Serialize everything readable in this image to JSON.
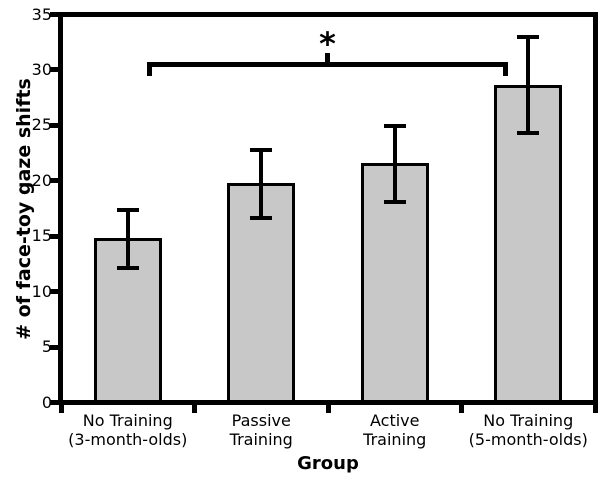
{
  "chart_data": {
    "type": "bar",
    "title": "",
    "xlabel": "Group",
    "ylabel": "# of face-toy gaze shifts",
    "categories": [
      "No Training\n(3-month-olds)",
      "Passive\nTraining",
      "Active\nTraining",
      "No Training\n(5-month-olds)"
    ],
    "values": [
      14.8,
      19.8,
      21.6,
      28.6
    ],
    "error_upper": [
      17.4,
      22.8,
      24.9,
      33.0
    ],
    "error_lower": [
      12.1,
      16.6,
      18.1,
      24.3
    ],
    "ylim": [
      0,
      35
    ],
    "yticks": [
      0,
      5,
      10,
      15,
      20,
      25,
      30,
      35
    ],
    "grid": false,
    "legend": null,
    "bar_fill": "#c8c8c8",
    "line_color": "#000000",
    "significance": {
      "label": "*",
      "from": "No Training (3-month-olds)",
      "to": "No Training (5-month-olds)",
      "bracket_y": 30.5
    }
  }
}
